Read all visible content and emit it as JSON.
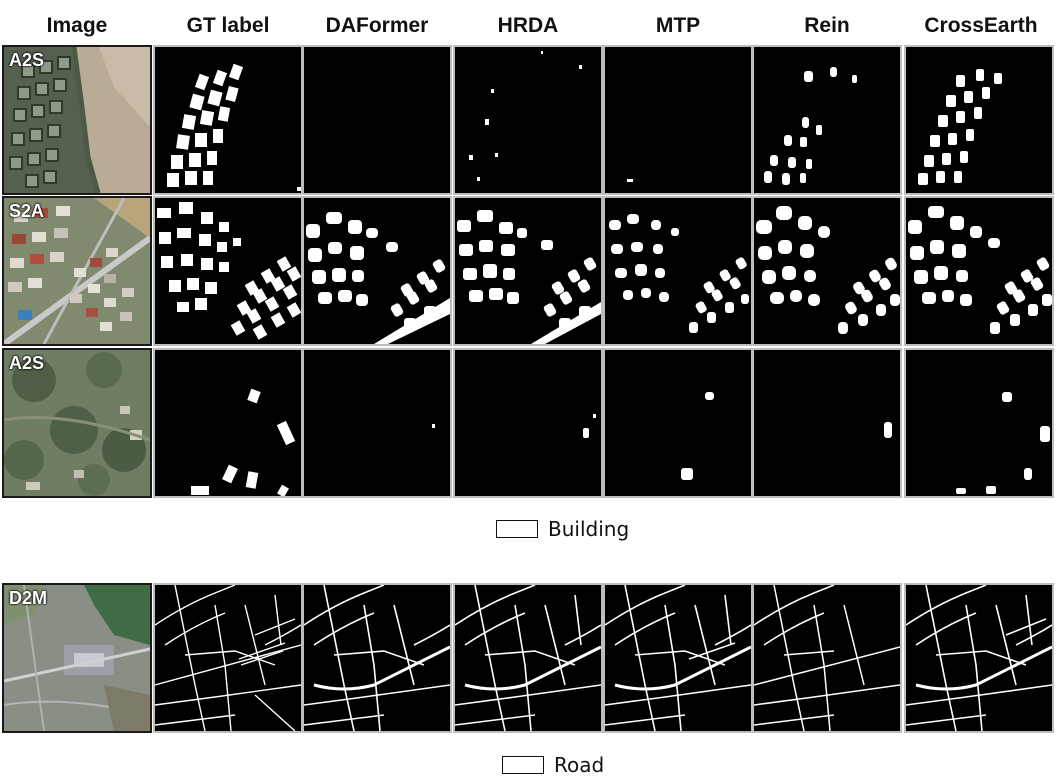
{
  "headers": [
    "Image",
    "GT label",
    "DAFormer",
    "HRDA",
    "MTP",
    "Rein",
    "CrossEarth"
  ],
  "rows": [
    {
      "tag": "A2S"
    },
    {
      "tag": "S2A"
    },
    {
      "tag": "A2S"
    },
    {
      "tag": "D2M"
    }
  ],
  "legends": {
    "building": "Building",
    "road": "Road"
  },
  "colors": {
    "background": "#000000",
    "mask": "#ffffff",
    "border": "#bdbdbd"
  }
}
